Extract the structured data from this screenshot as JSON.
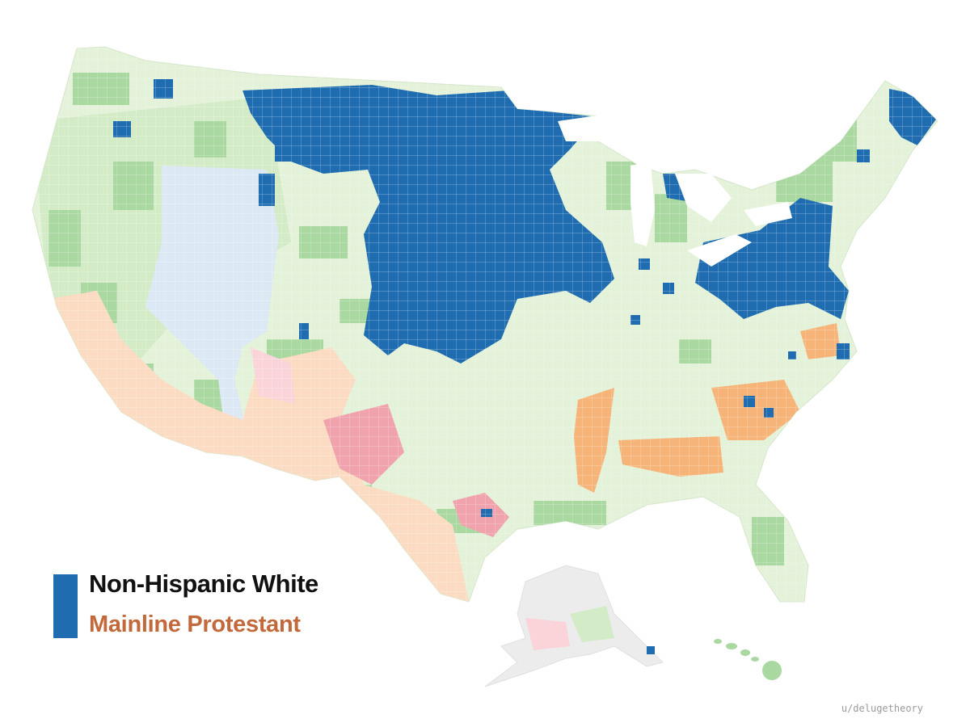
{
  "legend": {
    "line1": "Non-Hispanic White",
    "line2": "Mainline Protestant",
    "line1_color": "#111111",
    "line2_color": "#c2683a",
    "swatch_color": "#1f6db0"
  },
  "credit": "u/delugetheory",
  "colors": {
    "nation_base": "#e3f2d8",
    "light_green": "#d3ebc6",
    "mid_green": "#a9d8a0",
    "blue_highlight": "#1f6db0",
    "orange_region": "#f6b479",
    "peach_region": "#fbdcc2",
    "pink_region": "#f0a3ad",
    "light_pink": "#fad4d9",
    "pale_blue": "#dce9f5",
    "alaska_grey": "#ececec"
  },
  "regions": {
    "contiguous_us": "contiguous-us",
    "alaska": "alaska",
    "hawaii": "hawaii"
  }
}
